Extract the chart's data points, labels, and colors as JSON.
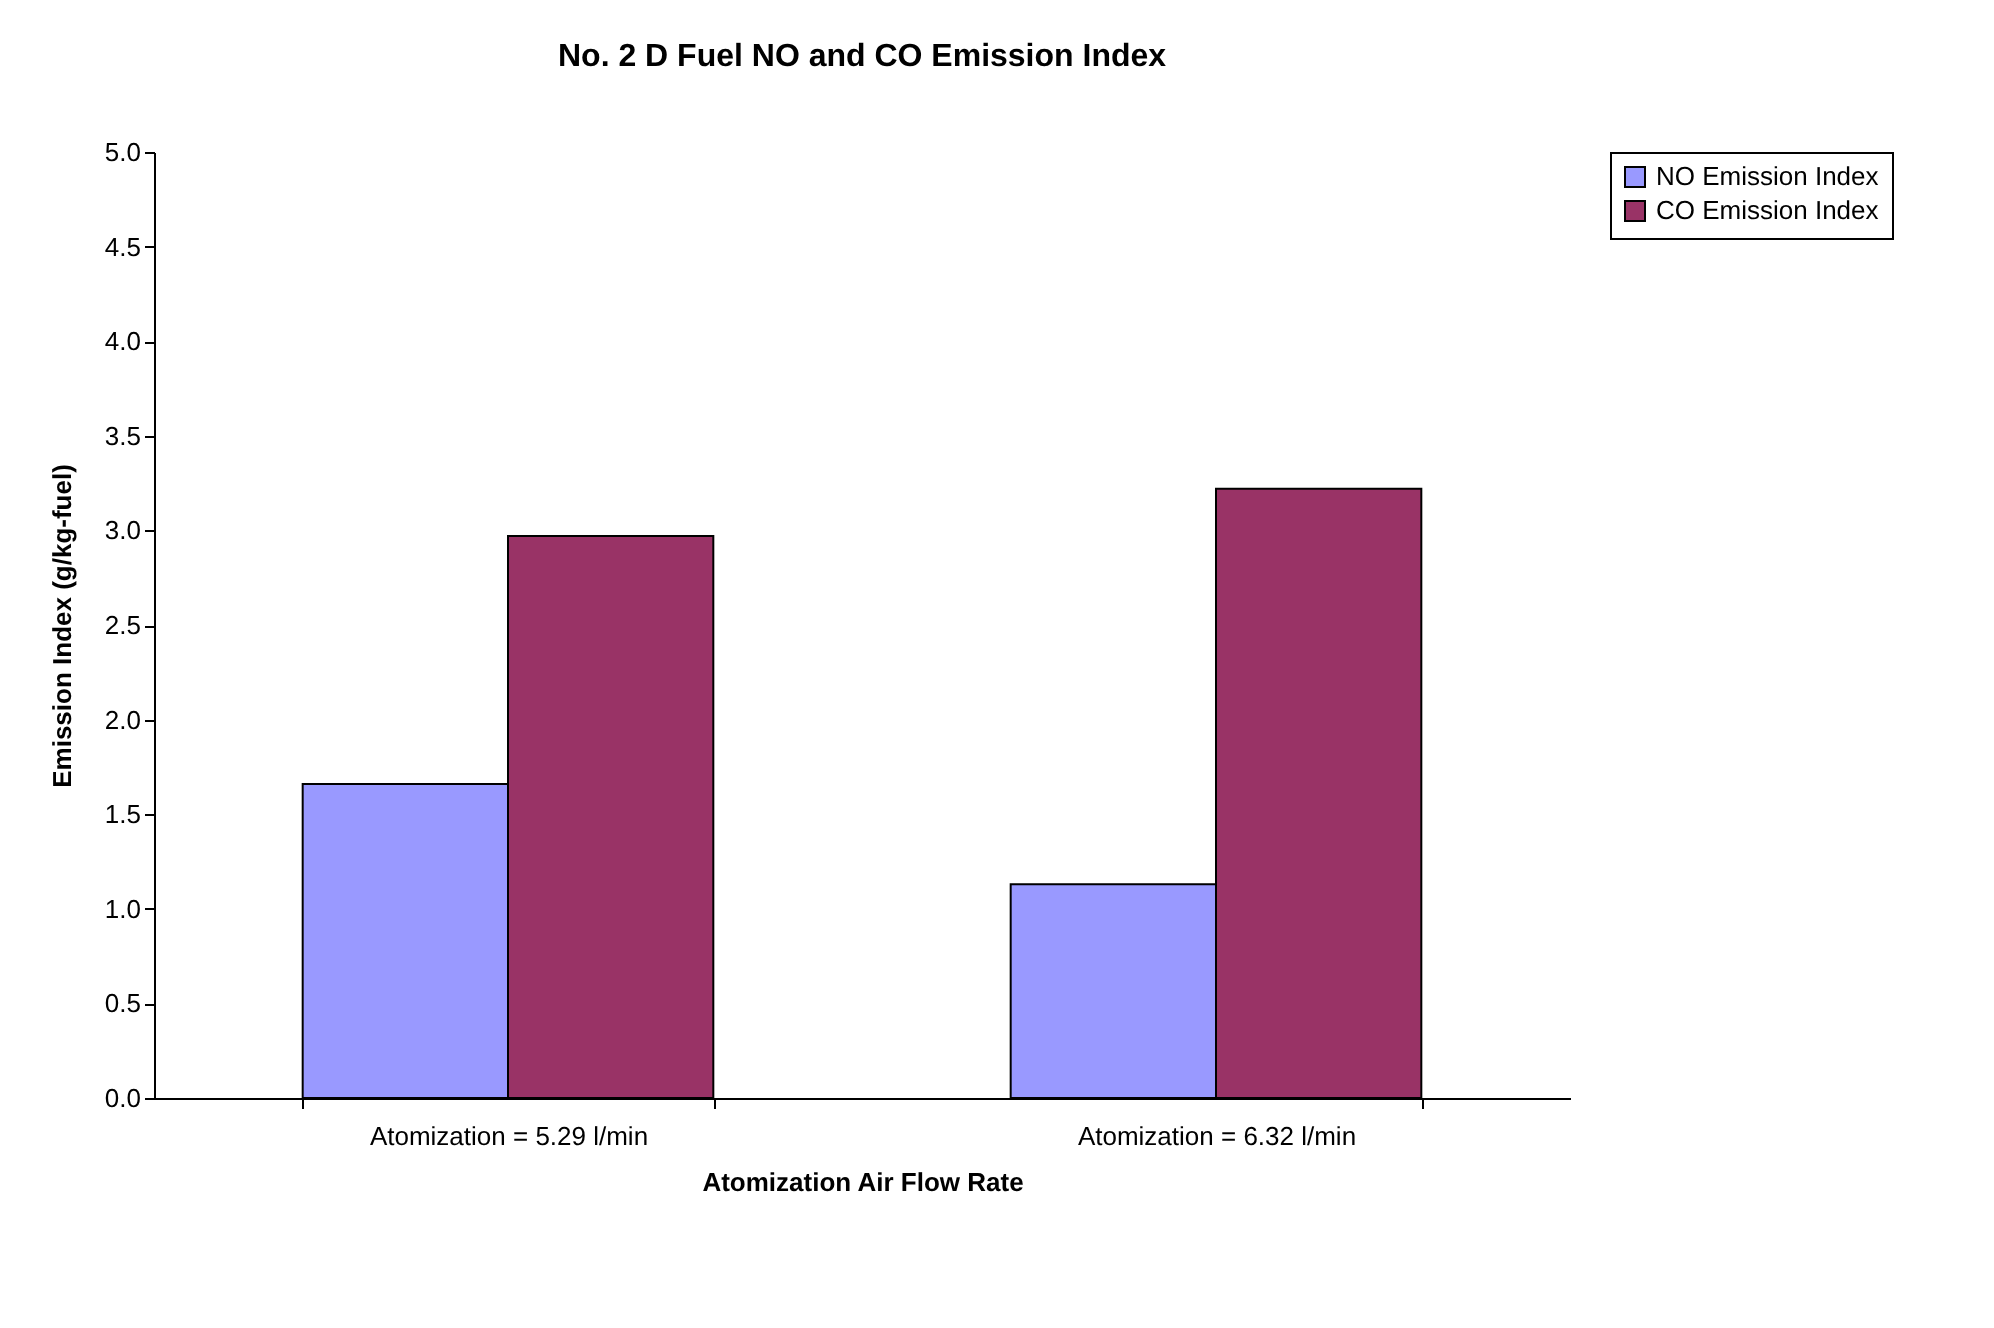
{
  "chart_data": {
    "type": "bar",
    "title": "No. 2 D Fuel NO and CO Emission Index",
    "xlabel": "Atomization Air Flow Rate",
    "ylabel": "Emission Index (g/kg-fuel)",
    "categories": [
      "Atomization = 5.29 l/min",
      "Atomization = 6.32 l/min"
    ],
    "series": [
      {
        "name": "NO Emission Index",
        "color": "#9999ff",
        "values": [
          1.66,
          1.13
        ]
      },
      {
        "name": "CO Emission Index",
        "color": "#993366",
        "values": [
          2.97,
          3.22
        ]
      }
    ],
    "ylim": [
      0,
      5
    ],
    "yticks": [
      {
        "value": 0,
        "label": "0.0"
      },
      {
        "value": 0.5,
        "label": "0.5"
      },
      {
        "value": 1,
        "label": "1.0"
      },
      {
        "value": 1.5,
        "label": "1.5"
      },
      {
        "value": 2,
        "label": "2.0"
      },
      {
        "value": 2.5,
        "label": "2.5"
      },
      {
        "value": 3,
        "label": "3.0"
      },
      {
        "value": 3.5,
        "label": "3.5"
      },
      {
        "value": 4,
        "label": "4.0"
      },
      {
        "value": 4.5,
        "label": "4.5"
      },
      {
        "value": 5,
        "label": "5.0"
      }
    ],
    "grid": false,
    "legend": "right"
  }
}
